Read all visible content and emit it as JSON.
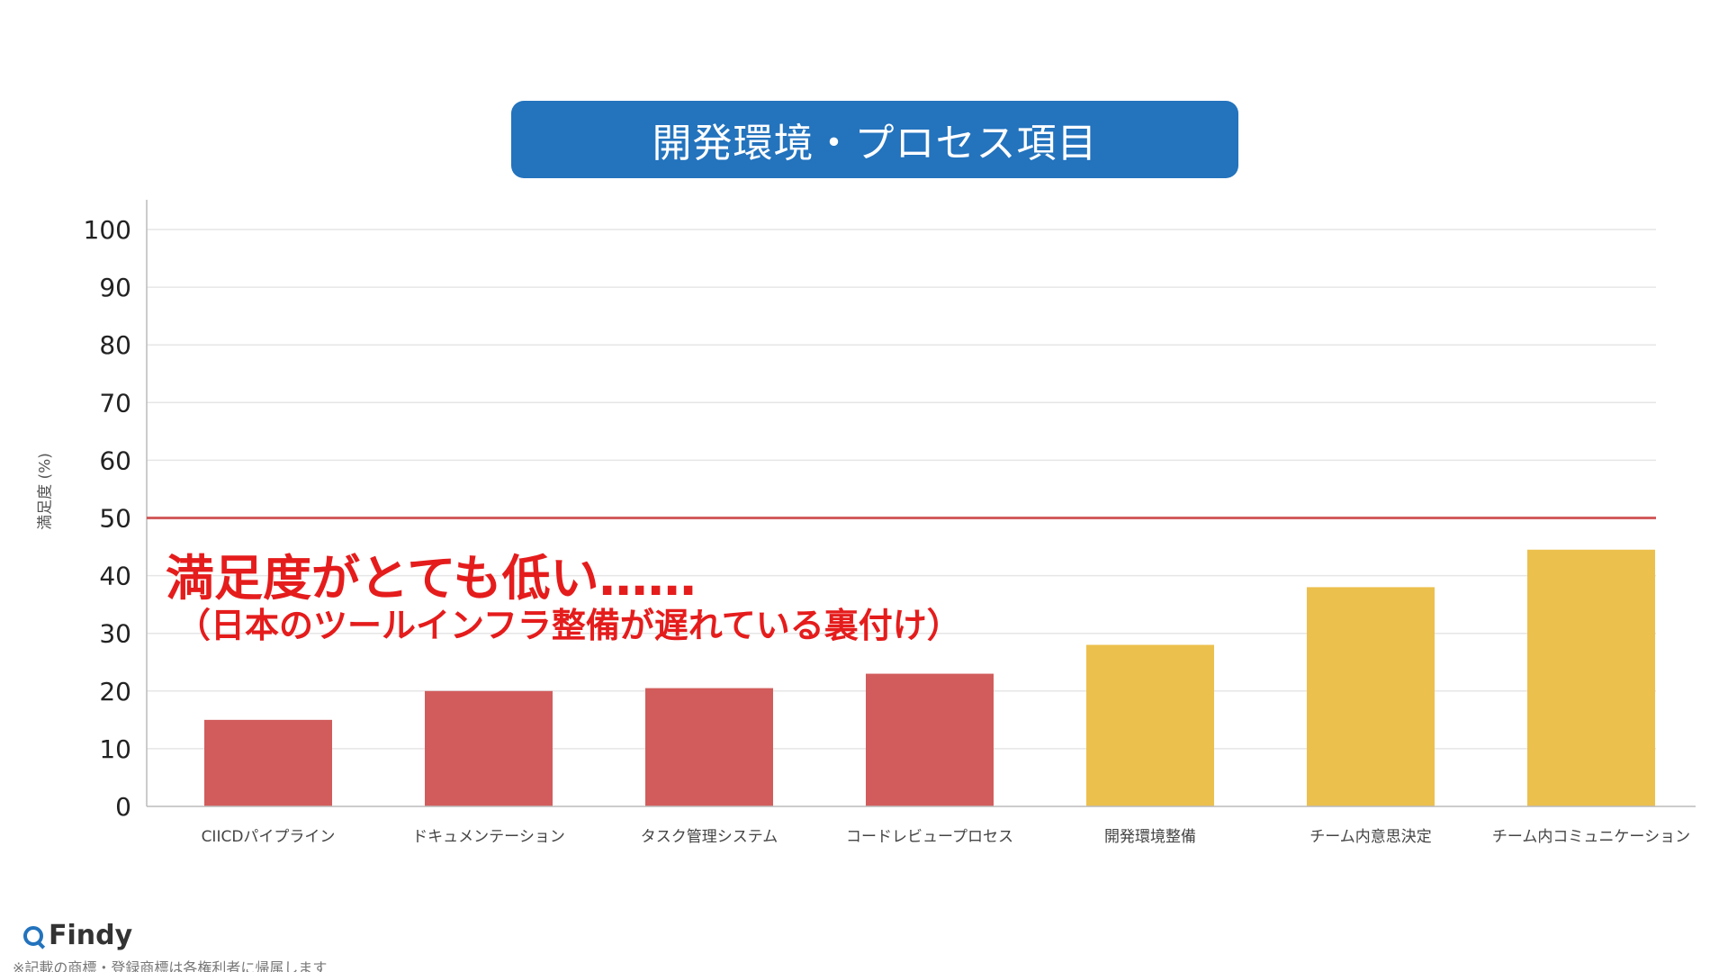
{
  "title": "開発環境・プロセス項目",
  "chart_data": {
    "type": "bar",
    "categories": [
      "CIICDパイプライン",
      "ドキュメンテーション",
      "タスク管理システム",
      "コードレビュープロセス",
      "開発環境整備",
      "チーム内意思決定",
      "チーム内コミュニケーション"
    ],
    "values": [
      15,
      20,
      20.5,
      23,
      28,
      38,
      44.5
    ],
    "bar_colors": [
      "#d25c5c",
      "#d25c5c",
      "#d25c5c",
      "#d25c5c",
      "#ecc04d",
      "#ecc04d",
      "#ecc04d"
    ],
    "ylabel": "満足度 (%)",
    "ylim": [
      0,
      100
    ],
    "yticks": [
      "0",
      "10",
      "20",
      "30",
      "40",
      "50",
      "60",
      "70",
      "80",
      "90",
      "100"
    ],
    "grid": true,
    "reference_line": {
      "value": 50,
      "color": "#d25c5c"
    }
  },
  "annotation": {
    "main": "満足度がとても低い……",
    "sub": "（日本のツールインフラ整備が遅れている裏付け）",
    "color": "#e51c1c"
  },
  "logo": {
    "text": "Findy",
    "icon": "findy-logo-icon"
  },
  "footnote": "※記載の商標・登録商標は各権利者に帰属します",
  "colors": {
    "banner": "#2373bd",
    "grid": "#e6e6e6",
    "axis": "#bbbbbb"
  }
}
